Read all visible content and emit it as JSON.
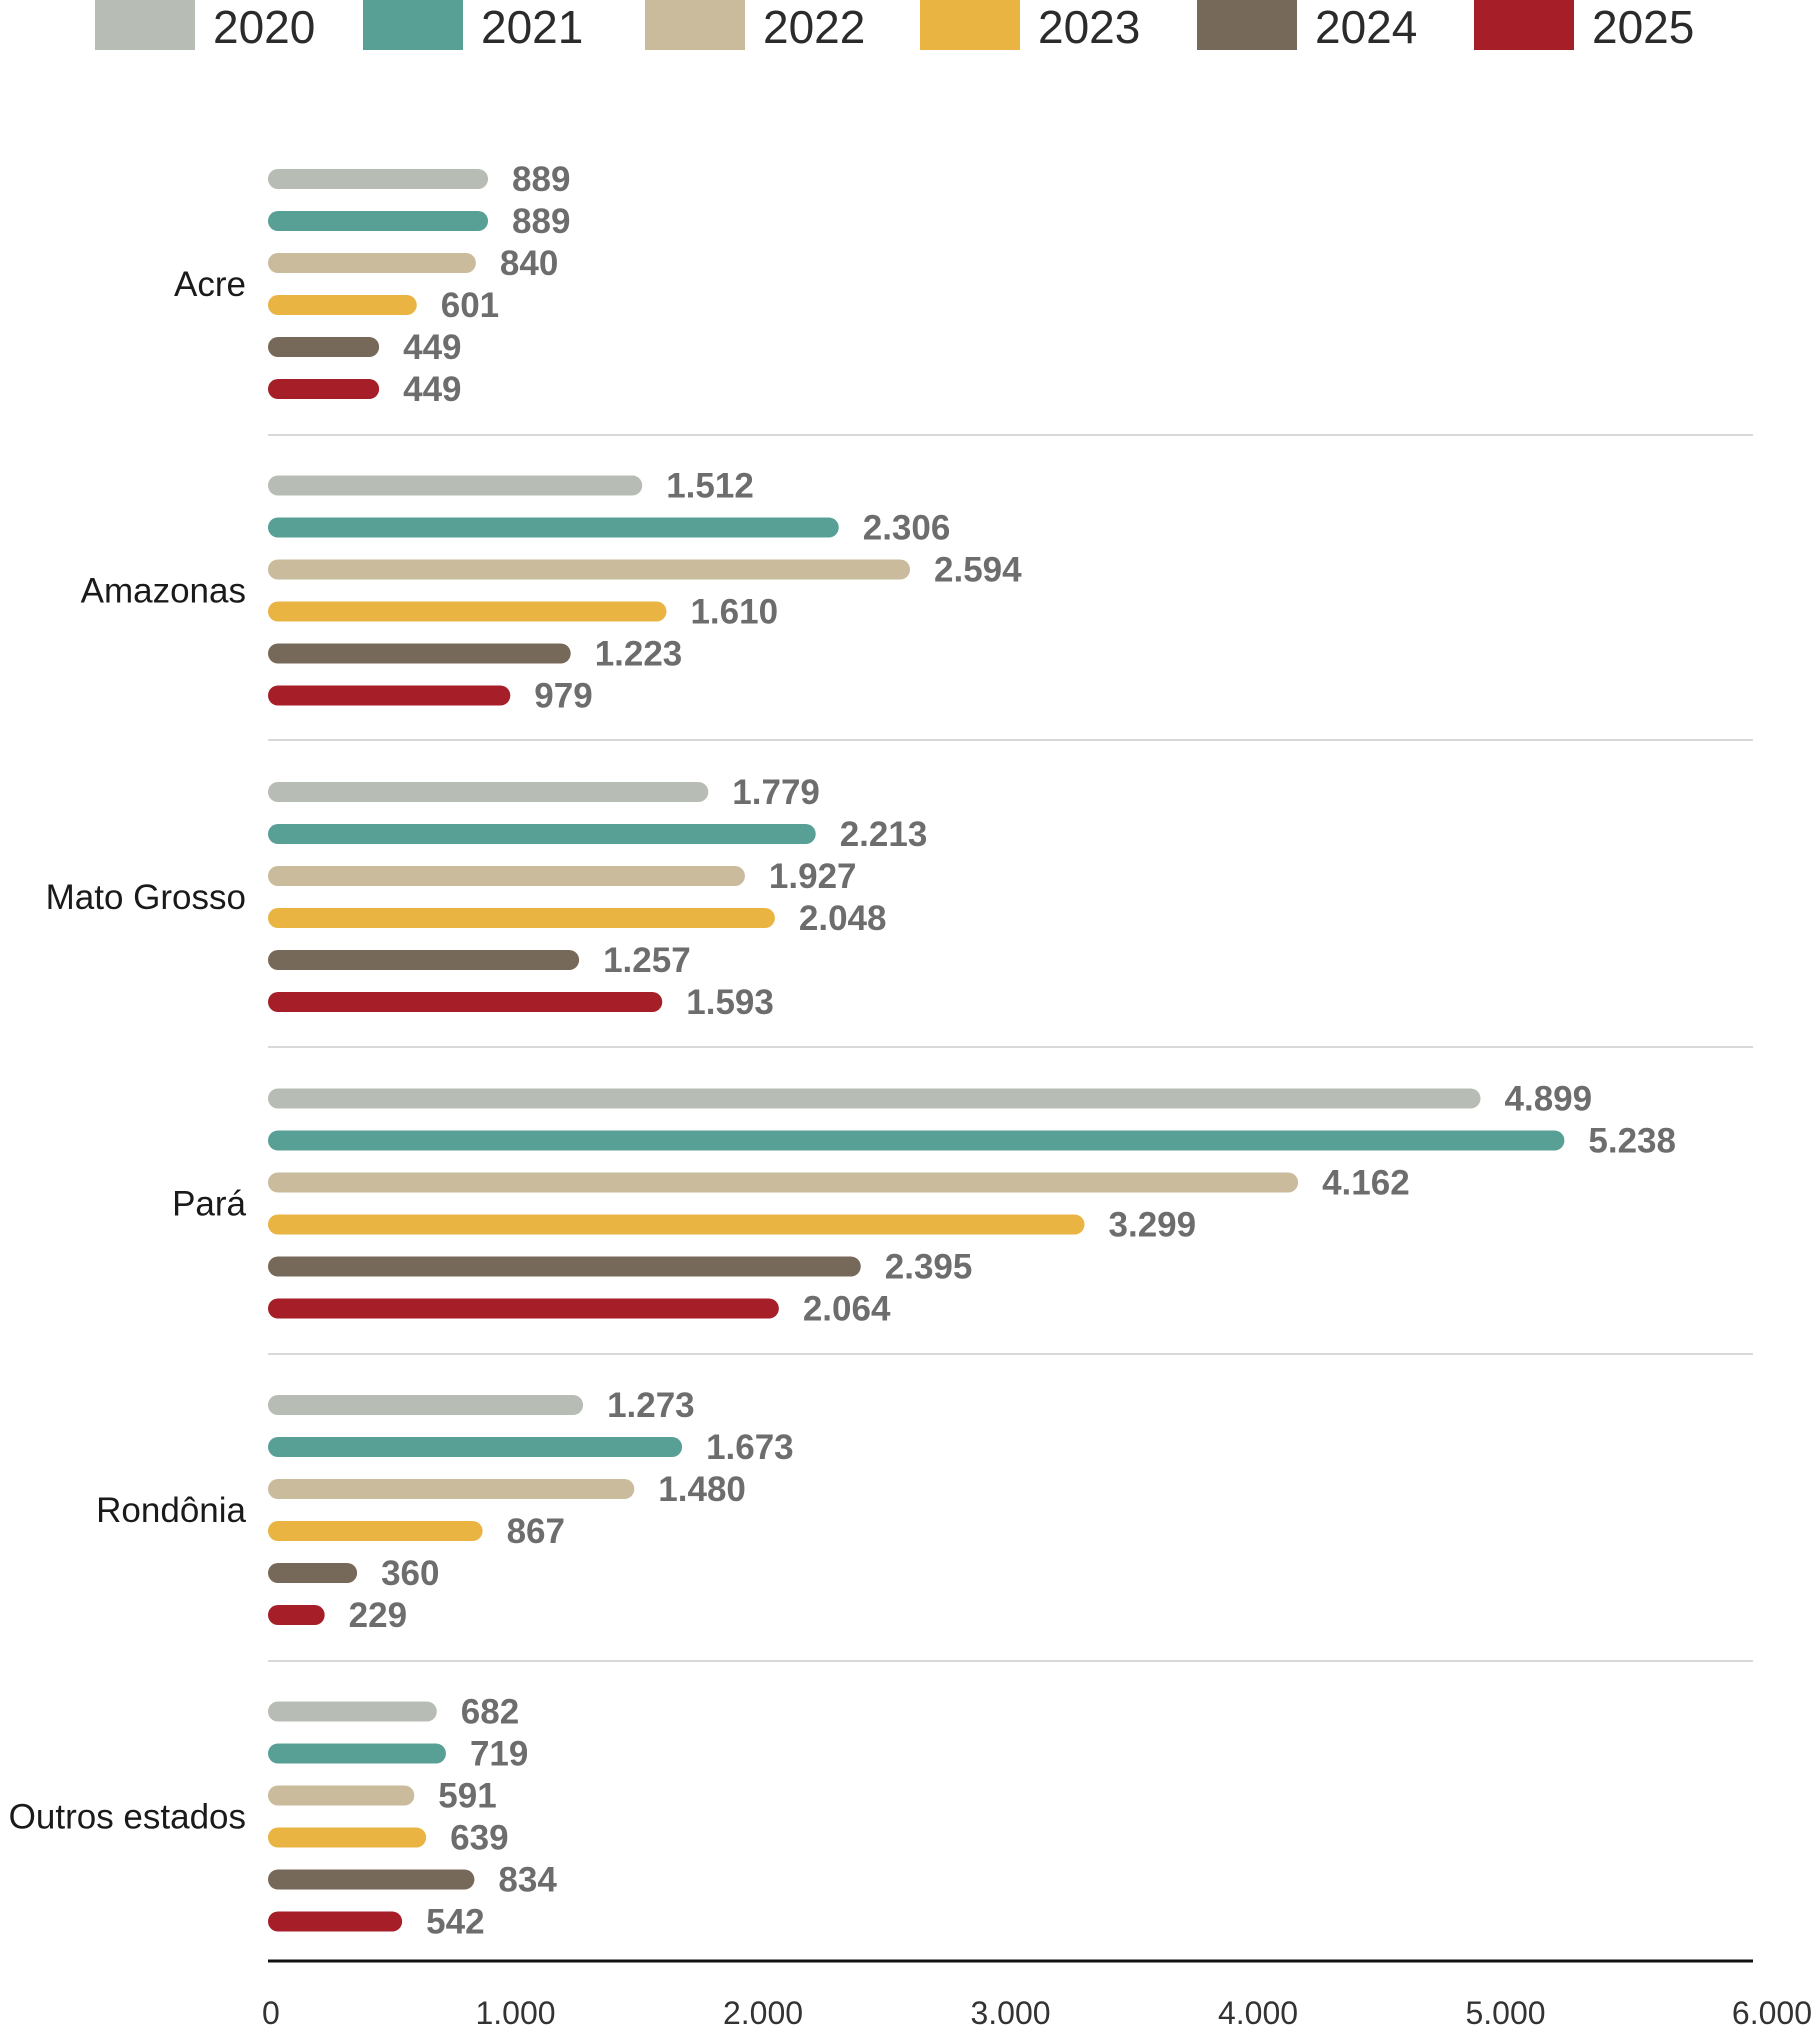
{
  "chart_data": {
    "type": "bar",
    "orientation": "horizontal",
    "categories": [
      "Acre",
      "Amazonas",
      "Mato Grosso",
      "Pará",
      "Rondônia",
      "Outros estados"
    ],
    "series": [
      {
        "name": "2020",
        "color": "#b7bcb4",
        "values": [
          889,
          1512,
          1779,
          4899,
          1273,
          682
        ],
        "labels": [
          "889",
          "1.512",
          "1.779",
          "4.899",
          "1.273",
          "682"
        ]
      },
      {
        "name": "2021",
        "color": "#58a096",
        "values": [
          889,
          2306,
          2213,
          5238,
          1673,
          719
        ],
        "labels": [
          "889",
          "2.306",
          "2.213",
          "5.238",
          "1.673",
          "719"
        ]
      },
      {
        "name": "2022",
        "color": "#c9bb9c",
        "values": [
          840,
          2594,
          1927,
          4162,
          1480,
          591
        ],
        "labels": [
          "840",
          "2.594",
          "1.927",
          "4.162",
          "1.480",
          "591"
        ]
      },
      {
        "name": "2023",
        "color": "#e9b441",
        "values": [
          601,
          1610,
          2048,
          3299,
          867,
          639
        ],
        "labels": [
          "601",
          "1.610",
          "2.048",
          "3.299",
          "867",
          "639"
        ]
      },
      {
        "name": "2024",
        "color": "#776959",
        "values": [
          449,
          1223,
          1257,
          2395,
          360,
          834
        ],
        "labels": [
          "449",
          "1.223",
          "1.257",
          "2.395",
          "360",
          "834"
        ]
      },
      {
        "name": "2025",
        "color": "#a51e28",
        "values": [
          449,
          979,
          1593,
          2064,
          229,
          542
        ],
        "labels": [
          "449",
          "979",
          "1.593",
          "2.064",
          "229",
          "542"
        ]
      }
    ],
    "xlim": [
      0,
      6000
    ],
    "xticks": [
      0,
      1000,
      2000,
      3000,
      4000,
      5000,
      6000
    ],
    "xtick_labels": [
      "0",
      "1.000",
      "2.000",
      "3.000",
      "4.000",
      "5.000",
      "6.000"
    ],
    "legend_position": "top",
    "grid": false,
    "title": "",
    "xlabel": "",
    "ylabel": ""
  }
}
